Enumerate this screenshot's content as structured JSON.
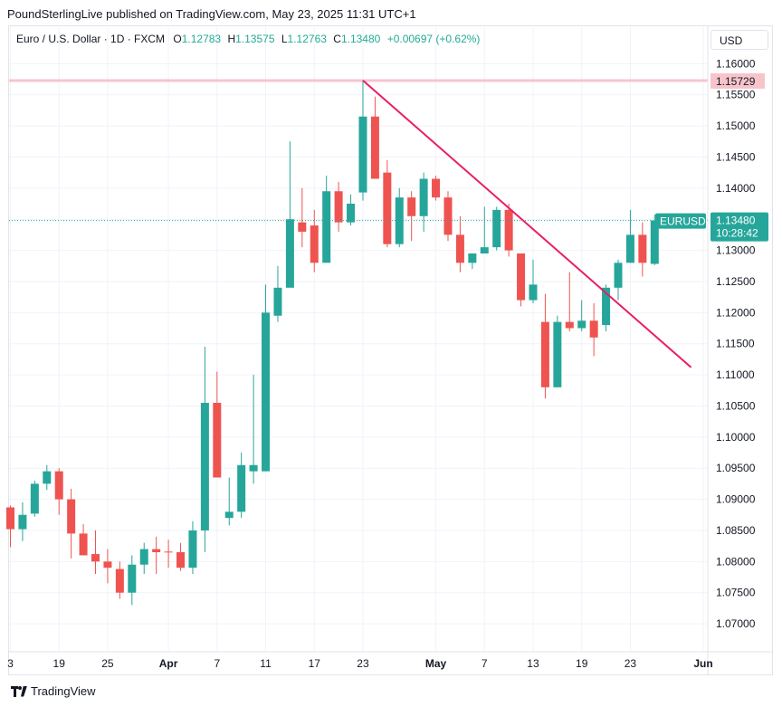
{
  "header": {
    "publisher_line": "PoundSterlingLive published on TradingView.com, May 23, 2025 11:31 UTC+1"
  },
  "legend": {
    "symbol": "Euro / U.S. Dollar · 1D · FXCM",
    "o_label": "O",
    "o_value": "1.12783",
    "h_label": "H",
    "h_value": "1.13575",
    "l_label": "L",
    "l_value": "1.12763",
    "c_label": "C",
    "c_value": "1.13480",
    "change": "+0.00697 (+0.62%)"
  },
  "currency_button": "USD",
  "footer": {
    "brand": "TradingView"
  },
  "colors": {
    "up": "#26a69a",
    "down": "#ef5350",
    "trendline": "#e91e63",
    "resistance": "#f8c4cc",
    "grid": "#f0f3fa",
    "axis_text": "#131722"
  },
  "chart_data": {
    "type": "candlestick",
    "symbol": "EURUSD",
    "interval": "1D",
    "ylim": [
      1.0655,
      1.1615
    ],
    "y_ticks": [
      "1.16000",
      "1.15500",
      "1.15000",
      "1.14500",
      "1.14000",
      "1.13500",
      "1.13000",
      "1.12500",
      "1.12000",
      "1.11500",
      "1.11000",
      "1.10500",
      "1.10000",
      "1.09500",
      "1.09000",
      "1.08500",
      "1.08000",
      "1.07500",
      "1.07000"
    ],
    "x_ticks": [
      {
        "i": 0,
        "label": "3",
        "bold": false
      },
      {
        "i": 4,
        "label": "19",
        "bold": false
      },
      {
        "i": 8,
        "label": "25",
        "bold": false
      },
      {
        "i": 13,
        "label": "Apr",
        "bold": true
      },
      {
        "i": 17,
        "label": "7",
        "bold": false
      },
      {
        "i": 21,
        "label": "11",
        "bold": false
      },
      {
        "i": 25,
        "label": "17",
        "bold": false
      },
      {
        "i": 29,
        "label": "23",
        "bold": false
      },
      {
        "i": 35,
        "label": "May",
        "bold": true
      },
      {
        "i": 39,
        "label": "7",
        "bold": false
      },
      {
        "i": 43,
        "label": "13",
        "bold": false
      },
      {
        "i": 47,
        "label": "19",
        "bold": false
      },
      {
        "i": 51,
        "label": "23",
        "bold": false
      },
      {
        "i": 57,
        "label": "Jun",
        "bold": true
      }
    ],
    "candles": [
      [
        1.0887,
        1.089,
        1.0823,
        1.0852
      ],
      [
        1.0852,
        1.0895,
        1.0833,
        1.0875
      ],
      [
        1.0877,
        1.093,
        1.0872,
        1.0925
      ],
      [
        1.0925,
        1.0955,
        1.0915,
        1.0945
      ],
      [
        1.0945,
        1.095,
        1.0875,
        1.09
      ],
      [
        1.09,
        1.0917,
        1.0805,
        1.0845
      ],
      [
        1.0845,
        1.086,
        1.081,
        1.081
      ],
      [
        1.0812,
        1.085,
        1.078,
        1.08
      ],
      [
        1.08,
        1.082,
        1.0765,
        1.079
      ],
      [
        1.0788,
        1.08,
        1.074,
        1.075
      ],
      [
        1.075,
        1.081,
        1.073,
        1.0795
      ],
      [
        1.0795,
        1.083,
        1.078,
        1.082
      ],
      [
        1.082,
        1.084,
        1.078,
        1.0815
      ],
      [
        1.0816,
        1.0835,
        1.079,
        1.0815
      ],
      [
        1.0815,
        1.083,
        1.0785,
        1.079
      ],
      [
        1.079,
        1.0865,
        1.078,
        1.085
      ],
      [
        1.085,
        1.1145,
        1.0815,
        1.1055
      ],
      [
        1.1055,
        1.1105,
        1.0935,
        1.0935
      ],
      [
        1.087,
        1.0935,
        1.0858,
        1.088
      ],
      [
        1.088,
        1.0975,
        1.087,
        1.0955
      ],
      [
        1.0945,
        1.11,
        1.0925,
        1.0955
      ],
      [
        1.0945,
        1.1245,
        1.0945,
        1.12
      ],
      [
        1.1195,
        1.1275,
        1.1185,
        1.124
      ],
      [
        1.124,
        1.1475,
        1.1245,
        1.135
      ],
      [
        1.1345,
        1.14,
        1.1305,
        1.133
      ],
      [
        1.134,
        1.1365,
        1.1265,
        1.128
      ],
      [
        1.128,
        1.142,
        1.128,
        1.1395
      ],
      [
        1.1395,
        1.141,
        1.133,
        1.1345
      ],
      [
        1.1345,
        1.139,
        1.134,
        1.1375
      ],
      [
        1.1393,
        1.1573,
        1.138,
        1.1515
      ],
      [
        1.1515,
        1.1547,
        1.1415,
        1.1415
      ],
      [
        1.1425,
        1.1445,
        1.1305,
        1.131
      ],
      [
        1.131,
        1.14,
        1.1305,
        1.1385
      ],
      [
        1.1385,
        1.1395,
        1.1315,
        1.1355
      ],
      [
        1.1355,
        1.1425,
        1.133,
        1.1415
      ],
      [
        1.1415,
        1.142,
        1.138,
        1.1385
      ],
      [
        1.1385,
        1.1395,
        1.1315,
        1.1325
      ],
      [
        1.1325,
        1.1355,
        1.1265,
        1.128
      ],
      [
        1.128,
        1.1295,
        1.127,
        1.1295
      ],
      [
        1.1295,
        1.137,
        1.1295,
        1.1305
      ],
      [
        1.1305,
        1.137,
        1.13,
        1.1365
      ],
      [
        1.1365,
        1.1375,
        1.129,
        1.13
      ],
      [
        1.1295,
        1.1295,
        1.121,
        1.122
      ],
      [
        1.122,
        1.1285,
        1.1215,
        1.1245
      ],
      [
        1.1185,
        1.123,
        1.1062,
        1.108
      ],
      [
        1.108,
        1.1195,
        1.108,
        1.1185
      ],
      [
        1.1185,
        1.1265,
        1.117,
        1.1175
      ],
      [
        1.1175,
        1.122,
        1.117,
        1.1187
      ],
      [
        1.1187,
        1.1215,
        1.113,
        1.116
      ],
      [
        1.118,
        1.1245,
        1.117,
        1.124
      ],
      [
        1.124,
        1.1285,
        1.122,
        1.128
      ],
      [
        1.128,
        1.1365,
        1.128,
        1.1325
      ],
      [
        1.1325,
        1.1345,
        1.1258,
        1.128
      ],
      [
        1.12783,
        1.13575,
        1.12763,
        1.1348
      ]
    ],
    "resistance": {
      "value": 1.15729,
      "label": "1.15729"
    },
    "trendline": [
      {
        "i": 29,
        "price": 1.1573
      },
      {
        "i": 56,
        "price": 1.1112
      }
    ],
    "last_price": {
      "symbol_label": "EURUSD",
      "value": 1.1348,
      "label": "1.13480",
      "countdown": "10:28:42"
    }
  }
}
